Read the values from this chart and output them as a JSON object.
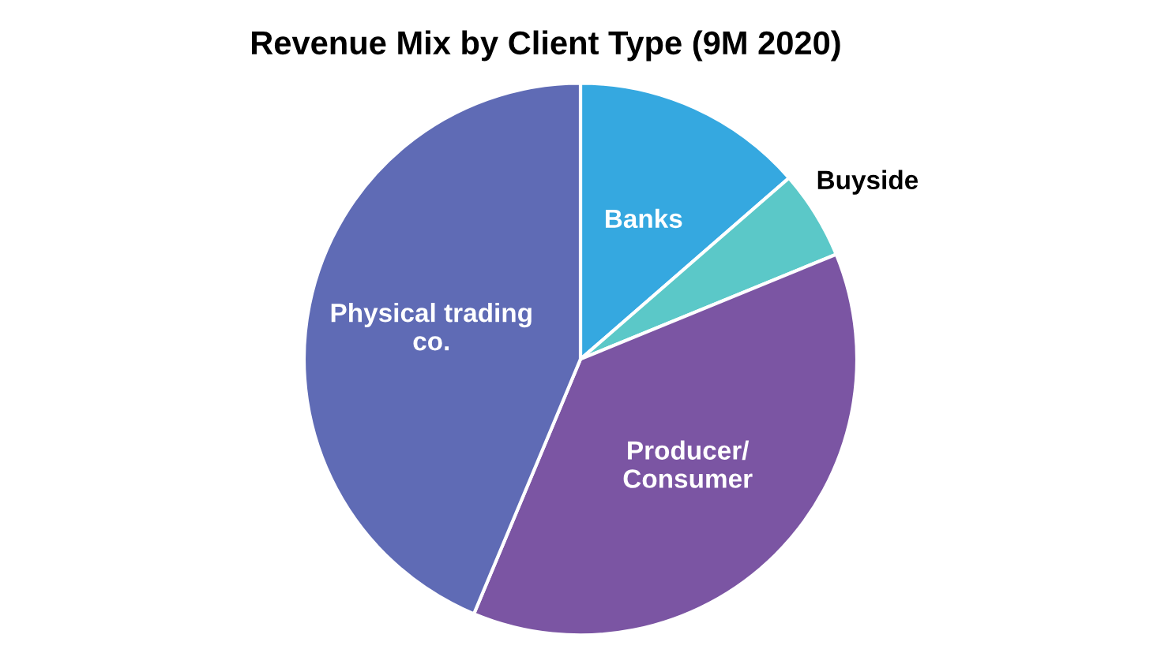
{
  "chart_data": {
    "type": "pie",
    "title": "Revenue Mix by Client Type (9M 2020)",
    "categories": [
      "Banks",
      "Buyside",
      "Producer/\nConsumer",
      "Physical trading\nco."
    ],
    "values": [
      13.6,
      5.2,
      37.5,
      43.7
    ],
    "colors": [
      "#35a8e0",
      "#5bc8c8",
      "#7b55a3",
      "#5f6bb5"
    ],
    "legend": false
  }
}
